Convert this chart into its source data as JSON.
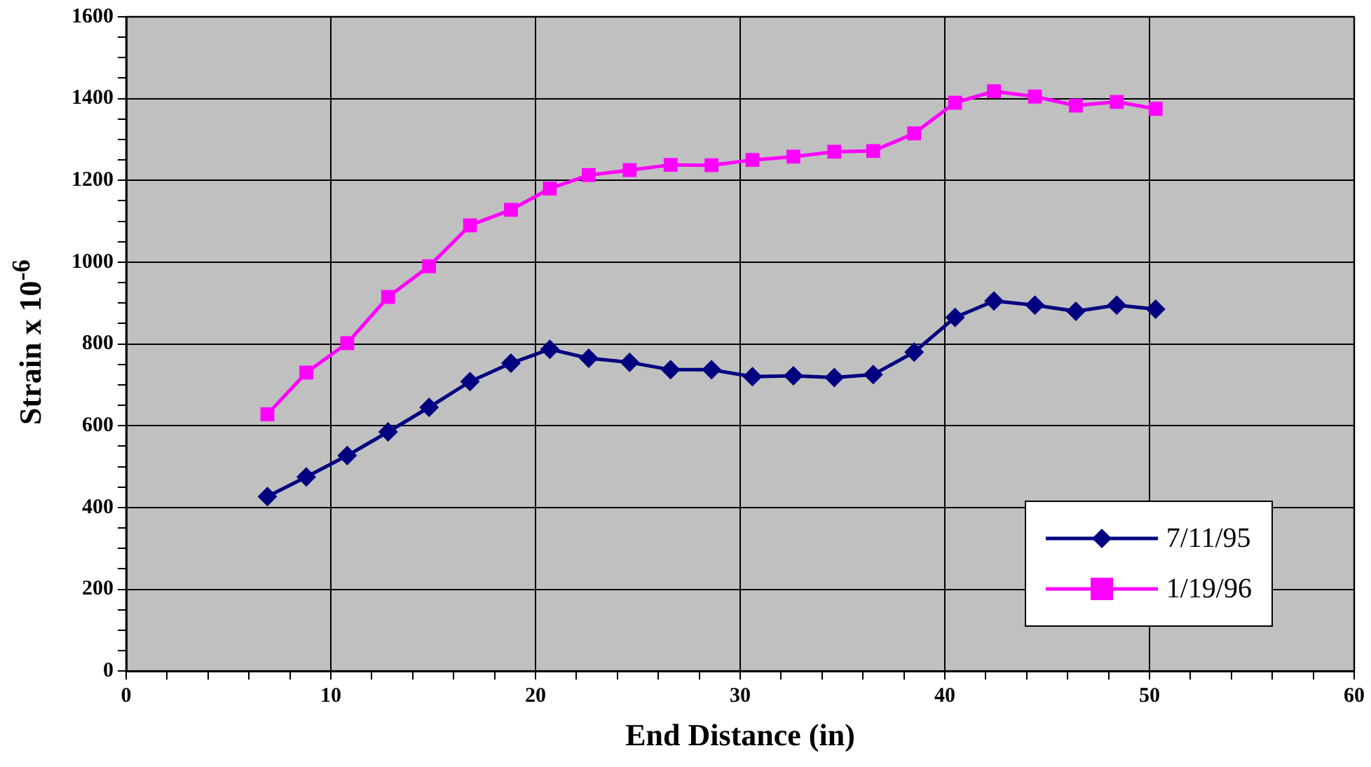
{
  "chart_data": {
    "type": "line",
    "xlabel": "End Distance (in)",
    "ylabel": "Strain x 10$^{-6}$",
    "xlim": [
      0,
      60
    ],
    "xticks": [
      0,
      10,
      20,
      30,
      40,
      50,
      60
    ],
    "ylim": [
      0,
      1600
    ],
    "yticks": [
      0,
      200,
      400,
      600,
      800,
      1000,
      1200,
      1400,
      1600
    ],
    "x": [
      6.9,
      8.8,
      10.8,
      12.8,
      14.8,
      16.8,
      18.8,
      20.7,
      22.6,
      24.6,
      26.6,
      28.6,
      30.6,
      32.6,
      34.6,
      36.5,
      38.5,
      40.5,
      42.4,
      44.4,
      46.4,
      48.4,
      50.3
    ],
    "grid": true,
    "legend": "bottom right",
    "line_style": "solid",
    "series": [
      {
        "name": "7/11/95",
        "color": "#000080",
        "marker": "diamond",
        "values": [
          427,
          475,
          527,
          585,
          645,
          708,
          753,
          787,
          765,
          755,
          737,
          737,
          720,
          722,
          718,
          725,
          780,
          865,
          905,
          895,
          880,
          895,
          885
        ]
      },
      {
        "name": "1/19/96",
        "color": "#ff00ff",
        "marker": "square",
        "values": [
          628,
          730,
          802,
          915,
          990,
          1090,
          1128,
          1180,
          1213,
          1225,
          1238,
          1237,
          1250,
          1258,
          1270,
          1272,
          1315,
          1390,
          1418,
          1405,
          1383,
          1392,
          1375
        ]
      }
    ]
  }
}
